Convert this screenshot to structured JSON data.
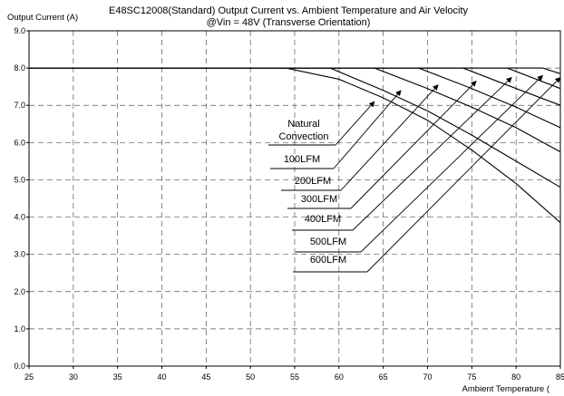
{
  "chart_data": {
    "type": "line",
    "title": "E48SC12008(Standard)  Output Current vs. Ambient Temperature and Air Velocity",
    "subtitle": "@Vin = 48V (Transverse Orientation)",
    "ylabel": "Output Current (A)",
    "xlabel": "Ambient Temperature (",
    "xlim": [
      25,
      85
    ],
    "ylim": [
      0,
      9
    ],
    "x_ticks": [
      "25",
      "30",
      "35",
      "40",
      "45",
      "50",
      "55",
      "60",
      "65",
      "70",
      "75",
      "80",
      "85"
    ],
    "y_ticks": [
      "0.0",
      "1.0",
      "2.0",
      "3.0",
      "4.0",
      "5.0",
      "6.0",
      "7.0",
      "8.0",
      "9.0"
    ],
    "grid": true,
    "legend": "none",
    "series": [
      {
        "points": [
          [
            25,
            8.0
          ],
          [
            54,
            8.0
          ],
          [
            60,
            7.7
          ],
          [
            65,
            7.2
          ],
          [
            70,
            6.6
          ],
          [
            75,
            5.8
          ],
          [
            80,
            4.9
          ],
          [
            85,
            3.85
          ]
        ]
      },
      {
        "points": [
          [
            25,
            8.0
          ],
          [
            59,
            8.0
          ],
          [
            65,
            7.4
          ],
          [
            70,
            6.85
          ],
          [
            75,
            6.2
          ],
          [
            80,
            5.5
          ],
          [
            85,
            4.8
          ]
        ]
      },
      {
        "points": [
          [
            25,
            8.0
          ],
          [
            64,
            8.0
          ],
          [
            70,
            7.45
          ],
          [
            75,
            6.95
          ],
          [
            80,
            6.4
          ],
          [
            85,
            5.75
          ]
        ]
      },
      {
        "points": [
          [
            25,
            8.0
          ],
          [
            69,
            8.0
          ],
          [
            75,
            7.45
          ],
          [
            80,
            6.95
          ],
          [
            85,
            6.4
          ]
        ]
      },
      {
        "points": [
          [
            25,
            8.0
          ],
          [
            74,
            8.0
          ],
          [
            80,
            7.45
          ],
          [
            85,
            7.0
          ]
        ]
      },
      {
        "points": [
          [
            25,
            8.0
          ],
          [
            79,
            8.0
          ],
          [
            85,
            7.45
          ]
        ]
      },
      {
        "points": [
          [
            25,
            8.0
          ],
          [
            83,
            8.0
          ],
          [
            85,
            7.85
          ]
        ]
      }
    ],
    "annotations": [
      {
        "lines": [
          "Natural",
          "Convection"
        ],
        "target": [
          64.0,
          7.1
        ]
      },
      {
        "lines": [
          "100LFM"
        ],
        "target": [
          67.0,
          7.4
        ]
      },
      {
        "lines": [
          "200LFM"
        ],
        "target": [
          71.2,
          7.55
        ]
      },
      {
        "lines": [
          "300LFM"
        ],
        "target": [
          75.5,
          7.65
        ]
      },
      {
        "lines": [
          "400LFM"
        ],
        "target": [
          79.5,
          7.75
        ]
      },
      {
        "lines": [
          "500LFM"
        ],
        "target": [
          83.0,
          7.8
        ]
      },
      {
        "lines": [
          "600LFM"
        ],
        "target": [
          85.0,
          7.75
        ]
      }
    ]
  }
}
